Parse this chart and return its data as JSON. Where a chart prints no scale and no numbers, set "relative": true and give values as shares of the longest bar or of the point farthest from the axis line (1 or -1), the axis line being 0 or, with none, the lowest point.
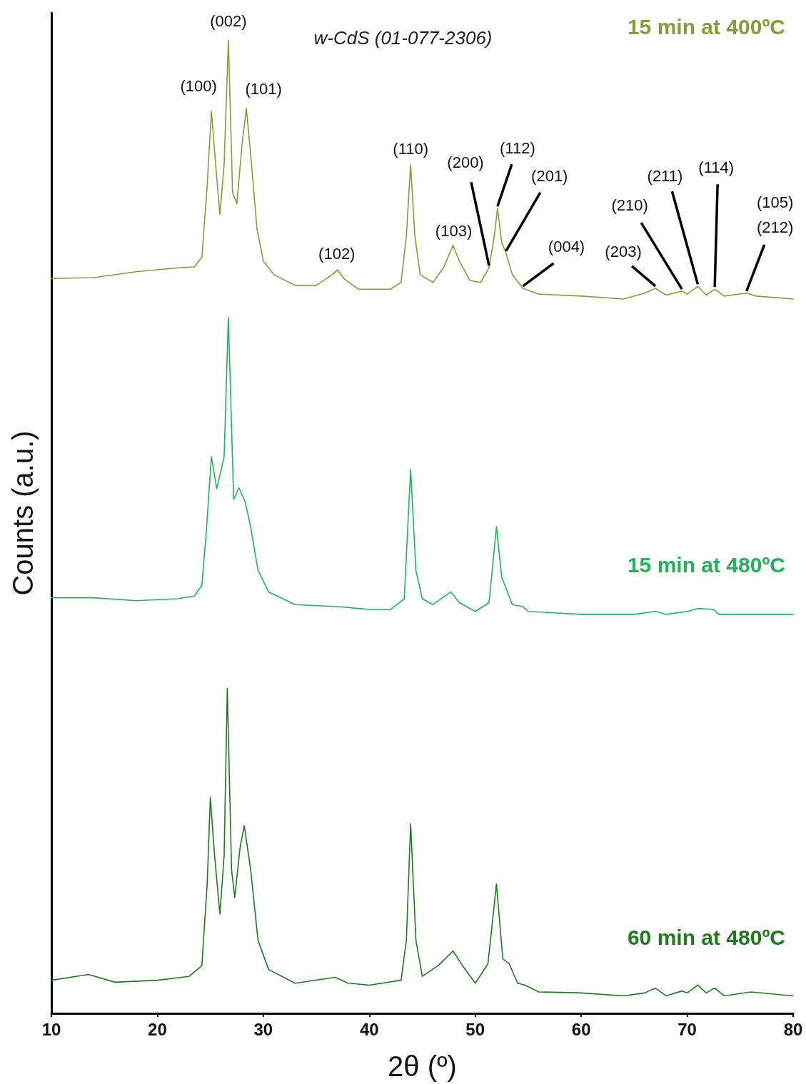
{
  "chart_data": {
    "type": "line",
    "relative": true,
    "xlabel": "2θ (º)",
    "ylabel": "Counts (a.u.)",
    "xlim": [
      10,
      80
    ],
    "xticks": [
      10,
      20,
      30,
      40,
      50,
      60,
      70,
      80
    ],
    "grid": false,
    "legend": false,
    "marker": "none",
    "line_style": "solid",
    "series": [
      {
        "name": "15 min at 400ºC",
        "color": "#8a9a3b",
        "x": [
          10,
          14,
          18,
          22,
          23.5,
          24.2,
          24.7,
          25.1,
          25.5,
          25.9,
          26.3,
          26.7,
          27.1,
          27.5,
          28.0,
          28.4,
          28.8,
          29.4,
          30,
          31,
          33,
          35,
          36.5,
          37,
          37.6,
          39,
          42,
          43,
          43.5,
          43.9,
          44.3,
          44.8,
          46,
          47,
          47.9,
          48.5,
          49.5,
          50.5,
          51.3,
          51.8,
          52.1,
          52.5,
          52.9,
          53.5,
          54.5,
          56,
          60,
          64,
          66,
          67,
          68,
          69.5,
          70,
          71,
          71.8,
          72.6,
          73.5,
          75.6,
          76.5,
          80
        ],
        "values": [
          0.755,
          0.756,
          0.762,
          0.766,
          0.767,
          0.777,
          0.85,
          0.927,
          0.872,
          0.821,
          0.872,
          1.0,
          0.843,
          0.832,
          0.894,
          0.93,
          0.883,
          0.806,
          0.773,
          0.759,
          0.748,
          0.748,
          0.759,
          0.764,
          0.755,
          0.744,
          0.744,
          0.751,
          0.799,
          0.872,
          0.799,
          0.759,
          0.751,
          0.766,
          0.789,
          0.773,
          0.753,
          0.751,
          0.766,
          0.799,
          0.827,
          0.792,
          0.781,
          0.759,
          0.745,
          0.739,
          0.737,
          0.734,
          0.74,
          0.745,
          0.738,
          0.742,
          0.739,
          0.747,
          0.738,
          0.744,
          0.737,
          0.74,
          0.737,
          0.734
        ]
      },
      {
        "name": "15 min at 480ºC",
        "color": "#21b35b",
        "x": [
          10,
          14,
          18,
          22,
          23.5,
          24.2,
          24.6,
          25.1,
          25.6,
          26.3,
          26.7,
          27.2,
          27.7,
          28.3,
          28.8,
          29.5,
          30.5,
          33,
          37,
          40,
          42,
          43.3,
          43.9,
          44.4,
          45,
          46,
          47.7,
          48.5,
          50,
          51.3,
          52.0,
          52.5,
          53.5,
          54.5,
          55,
          60,
          65,
          67,
          68,
          70,
          71,
          72.5,
          73,
          80
        ],
        "values": [
          0.427,
          0.427,
          0.424,
          0.426,
          0.429,
          0.44,
          0.492,
          0.572,
          0.539,
          0.572,
          0.715,
          0.528,
          0.54,
          0.525,
          0.5,
          0.455,
          0.433,
          0.42,
          0.418,
          0.415,
          0.415,
          0.426,
          0.559,
          0.455,
          0.426,
          0.42,
          0.433,
          0.422,
          0.413,
          0.422,
          0.5,
          0.448,
          0.42,
          0.418,
          0.413,
          0.41,
          0.41,
          0.413,
          0.41,
          0.413,
          0.416,
          0.415,
          0.41,
          0.41
        ]
      },
      {
        "name": "60 min at 480ºC",
        "color": "#1e7a1e",
        "x": [
          10,
          13.5,
          16,
          20,
          23,
          24.2,
          24.7,
          25.0,
          25.4,
          25.9,
          26.3,
          26.6,
          27.0,
          27.3,
          27.8,
          28.2,
          28.8,
          29.5,
          30.5,
          33,
          36.8,
          38,
          40,
          43,
          43.5,
          43.9,
          44.4,
          45,
          46.5,
          47.9,
          48.8,
          50,
          51.2,
          52.0,
          52.6,
          53.2,
          54,
          54.7,
          56,
          60,
          64,
          66,
          67,
          68,
          69.5,
          70,
          71,
          71.8,
          72.6,
          73.5,
          76,
          80
        ],
        "values": [
          0.034,
          0.04,
          0.032,
          0.034,
          0.038,
          0.049,
          0.133,
          0.222,
          0.162,
          0.102,
          0.162,
          0.334,
          0.148,
          0.119,
          0.17,
          0.193,
          0.148,
          0.075,
          0.045,
          0.031,
          0.037,
          0.031,
          0.029,
          0.034,
          0.075,
          0.195,
          0.075,
          0.038,
          0.049,
          0.064,
          0.049,
          0.031,
          0.051,
          0.133,
          0.056,
          0.051,
          0.031,
          0.029,
          0.022,
          0.021,
          0.018,
          0.021,
          0.026,
          0.018,
          0.023,
          0.021,
          0.029,
          0.021,
          0.026,
          0.018,
          0.022,
          0.018
        ]
      }
    ],
    "annotations": [
      "w-CdS (01-077-2306)",
      {
        "text": "(100)",
        "x": 25.1,
        "y": 0.927
      },
      {
        "text": "(002)",
        "x": 26.7,
        "y": 1.0
      },
      {
        "text": "(101)",
        "x": 28.4,
        "y": 0.93
      },
      {
        "text": "(102)",
        "x": 37,
        "y": 0.764
      },
      {
        "text": "(110)",
        "x": 43.9,
        "y": 0.872
      },
      {
        "text": "(103)",
        "x": 47.9,
        "y": 0.789
      },
      {
        "text": "(200)",
        "x": 51.3,
        "y": 0.766
      },
      {
        "text": "(112)",
        "x": 52.1,
        "y": 0.827
      },
      {
        "text": "(201)",
        "x": 52.9,
        "y": 0.781
      },
      {
        "text": "(004)",
        "x": 54.5,
        "y": 0.745
      },
      {
        "text": "(203)",
        "x": 67,
        "y": 0.745
      },
      {
        "text": "(210)",
        "x": 69.5,
        "y": 0.742
      },
      {
        "text": "(211)",
        "x": 71,
        "y": 0.747
      },
      {
        "text": "(114)",
        "x": 72.6,
        "y": 0.744
      },
      {
        "text": "(105)\n(212)",
        "x": 75.6,
        "y": 0.74
      }
    ]
  }
}
